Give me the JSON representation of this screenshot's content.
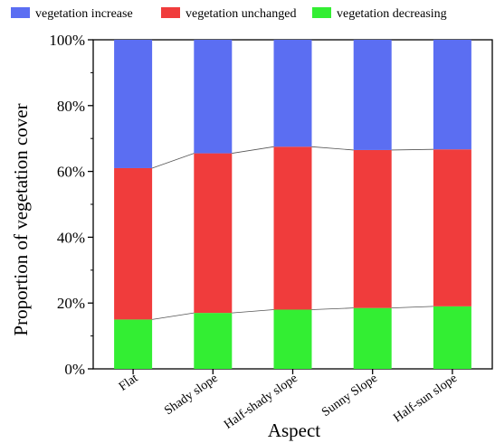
{
  "chart_data": {
    "type": "bar",
    "stacked": true,
    "normalized": true,
    "categories": [
      "Flat",
      "Shady slope",
      "Half-shady slope",
      "Sunny Slope",
      "Half-sun slope"
    ],
    "series": [
      {
        "name": "vegetation decreasing",
        "color": "#33ee33",
        "values": [
          15,
          17,
          18,
          18.5,
          19
        ]
      },
      {
        "name": "vegetation unchanged",
        "color": "#f03c3c",
        "values": [
          46,
          48.5,
          49.5,
          48,
          47.7
        ]
      },
      {
        "name": "vegetation increase",
        "color": "#5b6ef2",
        "values": [
          39,
          34.5,
          32.5,
          33.5,
          33.3
        ]
      }
    ],
    "legend_order": [
      "vegetation increase",
      "vegetation unchanged",
      "vegetation decreasing"
    ],
    "legend_position": "top",
    "xlabel": "Aspect",
    "ylabel": "Proportion of vegetation cover",
    "ylim": [
      0,
      100
    ],
    "yticks": [
      "0%",
      "20%",
      "40%",
      "60%",
      "80%",
      "100%"
    ],
    "connector_lines": true,
    "grid": false
  }
}
